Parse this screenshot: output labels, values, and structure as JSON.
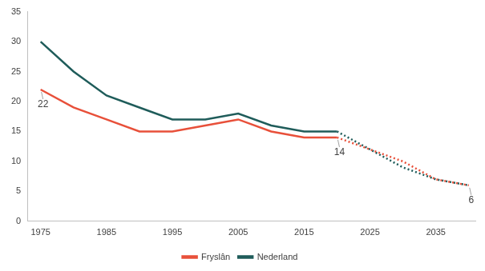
{
  "chart_data": {
    "type": "line",
    "x": [
      1975,
      1980,
      1985,
      1990,
      1995,
      2000,
      2005,
      2010,
      2015,
      2020,
      2025,
      2030,
      2035,
      2040
    ],
    "series": [
      {
        "name": "Fryslân",
        "color": "#e8503a",
        "line_style": "solid",
        "values": [
          22,
          19,
          17,
          15,
          15,
          16,
          17,
          15,
          14,
          14,
          null,
          null,
          null,
          null
        ]
      },
      {
        "name": "Nederland",
        "color": "#1f5c5a",
        "line_style": "solid",
        "values": [
          30,
          25,
          21,
          19,
          17,
          17,
          18,
          16,
          15,
          15,
          null,
          null,
          null,
          null
        ]
      },
      {
        "name": "Fryslân",
        "color": "#e8503a",
        "line_style": "dotted",
        "values": [
          null,
          null,
          null,
          null,
          null,
          null,
          null,
          null,
          null,
          14,
          12,
          10,
          7,
          6
        ]
      },
      {
        "name": "Nederland",
        "color": "#1f5c5a",
        "line_style": "dotted",
        "values": [
          null,
          null,
          null,
          null,
          null,
          null,
          null,
          null,
          null,
          15,
          12,
          9,
          7,
          6
        ]
      }
    ],
    "annotations": [
      {
        "x": 1975,
        "y": 22,
        "text": "22"
      },
      {
        "x": 2020,
        "y": 14,
        "text": "14"
      },
      {
        "x": 2040,
        "y": 6,
        "text": "6"
      }
    ],
    "xlim": [
      1973,
      2041
    ],
    "xticks": [
      1975,
      1985,
      1995,
      2005,
      2015,
      2025,
      2035
    ],
    "ylim": [
      0,
      35
    ],
    "yticks": [
      0,
      5,
      10,
      15,
      20,
      25,
      30,
      35
    ],
    "grid": false,
    "legend": "bottom"
  }
}
